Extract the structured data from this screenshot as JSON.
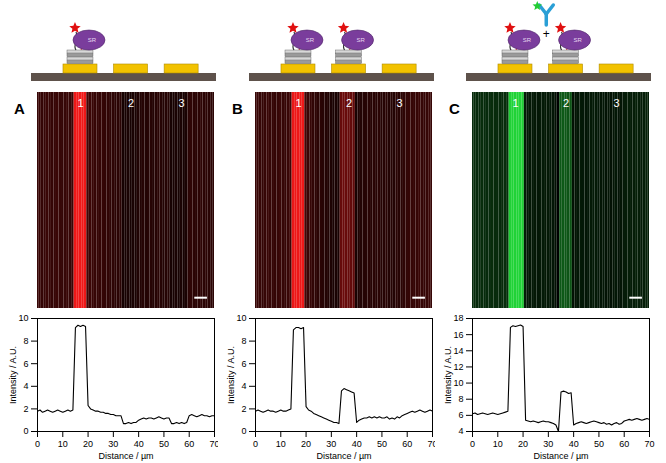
{
  "figure": {
    "panels": [
      {
        "label": "A",
        "schematic": {
          "loaded_pads": [
            1
          ],
          "protein_label": "SR",
          "antibody": false
        },
        "image": {
          "color": "#ff1a1a",
          "stripe_labels": [
            {
              "label": "1",
              "x": 17
            },
            {
              "label": "2",
              "x": 37
            },
            {
              "label": "3",
              "x": 57
            }
          ],
          "scale_bar_um": 5
        }
      },
      {
        "label": "B",
        "schematic": {
          "loaded_pads": [
            1,
            2
          ],
          "protein_label": "SR",
          "antibody": false
        },
        "image": {
          "color": "#ff1a1a",
          "stripe_labels": [
            {
              "label": "1",
              "x": 17
            },
            {
              "label": "2",
              "x": 37
            },
            {
              "label": "3",
              "x": 57
            }
          ],
          "scale_bar_um": 5
        }
      },
      {
        "label": "C",
        "schematic": {
          "loaded_pads": [
            1,
            2
          ],
          "protein_label": "SR",
          "antibody": true,
          "plus": "+"
        },
        "image": {
          "color": "#22e03a",
          "stripe_labels": [
            {
              "label": "1",
              "x": 17
            },
            {
              "label": "2",
              "x": 37
            },
            {
              "label": "3",
              "x": 57
            }
          ],
          "scale_bar_um": 5
        }
      }
    ]
  },
  "chart_data": [
    {
      "type": "line",
      "color": "#000000",
      "x_label": "Distance / µm",
      "y_label": "Intensity / A.U.",
      "xlim": [
        0,
        70
      ],
      "xticks": [
        0,
        10,
        20,
        30,
        40,
        50,
        60,
        70
      ],
      "ylim": [
        0,
        10
      ],
      "yticks": [
        0,
        2,
        4,
        6,
        8,
        10
      ],
      "x": [
        0,
        1,
        2,
        3,
        4,
        5,
        6,
        7,
        8,
        9,
        10,
        11,
        12,
        13,
        14,
        15,
        16,
        17,
        18,
        19,
        20,
        21,
        22,
        23,
        24,
        25,
        26,
        27,
        28,
        29,
        30,
        31,
        32,
        33,
        34,
        35,
        36,
        37,
        38,
        39,
        40,
        41,
        42,
        43,
        44,
        45,
        46,
        47,
        48,
        49,
        50,
        51,
        52,
        53,
        54,
        55,
        56,
        57,
        58,
        59,
        60,
        61,
        62,
        63,
        64,
        65,
        66,
        67,
        68,
        69,
        70
      ],
      "values": [
        1.8,
        1.9,
        1.7,
        1.8,
        1.9,
        1.8,
        1.7,
        1.8,
        1.9,
        1.8,
        1.7,
        1.8,
        1.9,
        1.8,
        1.9,
        9.2,
        9.4,
        9.3,
        9.4,
        9.3,
        2.3,
        2.0,
        1.9,
        1.8,
        1.8,
        1.7,
        1.7,
        1.6,
        1.6,
        1.5,
        1.5,
        1.4,
        1.4,
        1.4,
        0.7,
        0.7,
        0.8,
        0.7,
        0.8,
        0.8,
        1.0,
        1.1,
        1.2,
        1.1,
        1.2,
        1.2,
        1.1,
        1.2,
        1.3,
        1.2,
        1.1,
        1.2,
        1.2,
        0.7,
        0.7,
        0.8,
        0.7,
        0.8,
        0.7,
        0.8,
        1.4,
        1.5,
        1.4,
        1.3,
        1.4,
        1.5,
        1.4,
        1.4,
        1.3,
        1.4,
        1.4
      ]
    },
    {
      "type": "line",
      "color": "#000000",
      "x_label": "Distance / µm",
      "y_label": "Intensity / A.U.",
      "xlim": [
        0,
        70
      ],
      "xticks": [
        0,
        10,
        20,
        30,
        40,
        50,
        60,
        70
      ],
      "ylim": [
        0,
        10
      ],
      "yticks": [
        0,
        2,
        4,
        6,
        8,
        10
      ],
      "x": [
        0,
        1,
        2,
        3,
        4,
        5,
        6,
        7,
        8,
        9,
        10,
        11,
        12,
        13,
        14,
        15,
        16,
        17,
        18,
        19,
        20,
        21,
        22,
        23,
        24,
        25,
        26,
        27,
        28,
        29,
        30,
        31,
        32,
        33,
        34,
        35,
        36,
        37,
        38,
        39,
        40,
        41,
        42,
        43,
        44,
        45,
        46,
        47,
        48,
        49,
        50,
        51,
        52,
        53,
        54,
        55,
        56,
        57,
        58,
        59,
        60,
        61,
        62,
        63,
        64,
        65,
        66,
        67,
        68,
        69,
        70
      ],
      "values": [
        1.8,
        1.9,
        1.8,
        1.7,
        1.8,
        1.9,
        1.8,
        1.8,
        1.7,
        1.8,
        1.9,
        1.8,
        1.8,
        1.9,
        2.0,
        9.0,
        9.2,
        9.2,
        9.1,
        9.2,
        2.2,
        1.9,
        1.8,
        1.6,
        1.5,
        1.4,
        1.3,
        1.2,
        1.1,
        1.0,
        0.9,
        0.8,
        0.8,
        0.7,
        3.6,
        3.8,
        3.7,
        3.6,
        3.5,
        3.4,
        0.8,
        1.0,
        1.1,
        1.2,
        1.2,
        1.3,
        1.2,
        1.3,
        1.2,
        1.3,
        1.2,
        1.2,
        1.3,
        1.1,
        1.2,
        1.1,
        1.3,
        1.2,
        1.4,
        1.5,
        1.6,
        1.7,
        1.8,
        1.7,
        1.8,
        1.9,
        1.8,
        1.7,
        1.8,
        1.9,
        1.8
      ]
    },
    {
      "type": "line",
      "color": "#000000",
      "x_label": "Distance / µm",
      "y_label": "Intensity / A.U.",
      "xlim": [
        0,
        70
      ],
      "xticks": [
        0,
        10,
        20,
        30,
        40,
        50,
        60,
        70
      ],
      "ylim": [
        4,
        18
      ],
      "yticks": [
        4,
        6,
        8,
        10,
        12,
        14,
        16,
        18
      ],
      "x": [
        0,
        1,
        2,
        3,
        4,
        5,
        6,
        7,
        8,
        9,
        10,
        11,
        12,
        13,
        14,
        15,
        16,
        17,
        18,
        19,
        20,
        21,
        22,
        23,
        24,
        25,
        26,
        27,
        28,
        29,
        30,
        31,
        32,
        33,
        34,
        35,
        36,
        37,
        38,
        39,
        40,
        41,
        42,
        43,
        44,
        45,
        46,
        47,
        48,
        49,
        50,
        51,
        52,
        53,
        54,
        55,
        56,
        57,
        58,
        59,
        60,
        61,
        62,
        63,
        64,
        65,
        66,
        67,
        68,
        69,
        70
      ],
      "values": [
        6.2,
        6.3,
        6.1,
        6.2,
        6.3,
        6.2,
        6.1,
        6.2,
        6.3,
        6.2,
        6.1,
        6.2,
        6.3,
        6.4,
        6.5,
        16.9,
        17.1,
        17.0,
        17.1,
        17.2,
        17.0,
        5.4,
        5.3,
        5.2,
        5.3,
        5.2,
        5.1,
        5.2,
        5.3,
        5.2,
        5.2,
        5.1,
        5.0,
        4.8,
        4.0,
        8.9,
        9.0,
        8.9,
        8.7,
        8.8,
        4.8,
        5.0,
        5.1,
        5.2,
        5.1,
        5.0,
        5.1,
        5.2,
        5.3,
        5.2,
        5.1,
        5.0,
        5.1,
        4.9,
        5.0,
        4.8,
        5.0,
        5.1,
        4.9,
        5.0,
        5.3,
        5.4,
        5.5,
        5.4,
        5.5,
        5.6,
        5.5,
        5.4,
        5.5,
        5.6,
        5.5
      ]
    }
  ]
}
